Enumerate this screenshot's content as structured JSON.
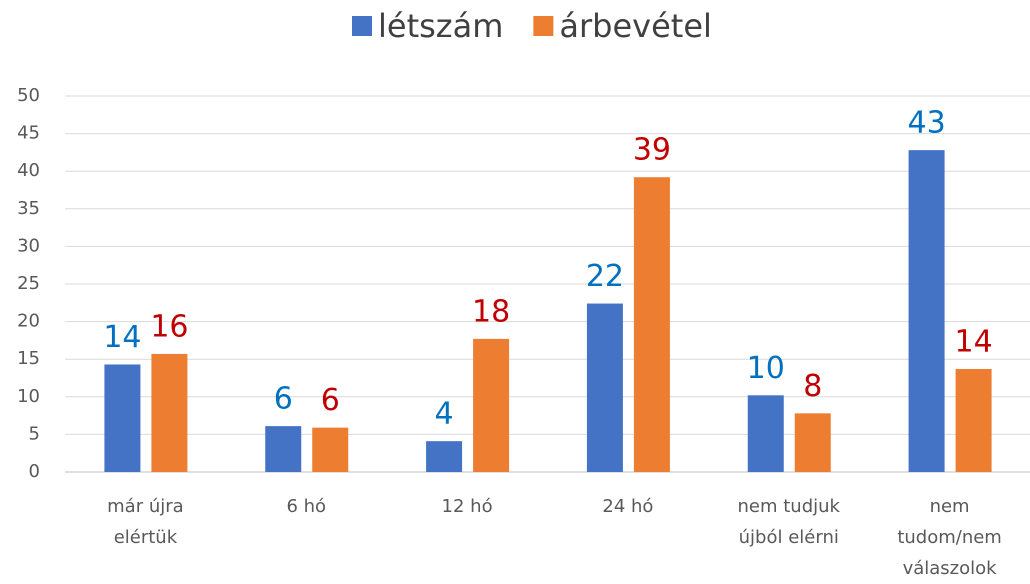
{
  "chart_data": {
    "type": "bar",
    "categories": [
      [
        "már újra",
        "elértük"
      ],
      [
        "6 hó"
      ],
      [
        "12 hó"
      ],
      [
        "24 hó"
      ],
      [
        "nem tudjuk",
        "újból elérni"
      ],
      [
        "nem",
        "tudom/nem",
        "válaszolok"
      ]
    ],
    "series": [
      {
        "name": "létszám",
        "color": "#4472c4",
        "label_color": "#0070c0",
        "values": [
          14.3,
          6.1,
          4.1,
          22.4,
          10.2,
          42.8
        ],
        "value_labels": [
          "14",
          "6",
          "4",
          "22",
          "10",
          "43"
        ]
      },
      {
        "name": "árbevétel",
        "color": "#ed7d31",
        "label_color": "#c00000",
        "values": [
          15.7,
          5.9,
          17.7,
          39.2,
          7.8,
          13.7
        ],
        "value_labels": [
          "16",
          "6",
          "18",
          "39",
          "8",
          "14"
        ]
      }
    ],
    "ylim": [
      0,
      50
    ],
    "yticks": [
      0,
      5,
      10,
      15,
      20,
      25,
      30,
      35,
      40,
      45,
      50
    ],
    "grid": true,
    "legend": "top"
  }
}
